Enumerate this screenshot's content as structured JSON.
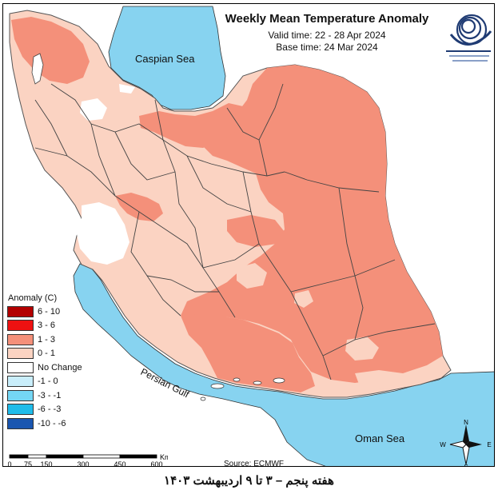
{
  "header": {
    "title": "Weekly Mean Temperature Anomaly",
    "valid_time": "Valid time: 22 - 28 Apr 2024",
    "base_time": "Base time: 24 Mar 2024"
  },
  "water_labels": {
    "caspian": "Caspian Sea",
    "gulf": "Persian Gulf",
    "oman": "Oman Sea"
  },
  "legend": {
    "title": "Anomaly (C)",
    "items": [
      {
        "label": "6 - 10",
        "color": "#b30000"
      },
      {
        "label": "3 - 6",
        "color": "#ee1111"
      },
      {
        "label": "1 - 3",
        "color": "#f4907a"
      },
      {
        "label": "0 - 1",
        "color": "#fbd3c2"
      },
      {
        "label": "No Change",
        "color": "#ffffff"
      },
      {
        "label": "-1 - 0",
        "color": "#c9eefb"
      },
      {
        "label": "-3 - -1",
        "color": "#74d6f4"
      },
      {
        "label": "-6 - -3",
        "color": "#1fbcea"
      },
      {
        "label": "-10 - -6",
        "color": "#1a56b0"
      }
    ]
  },
  "scale_bar": {
    "ticks": [
      "0",
      "75",
      "150",
      "300",
      "450",
      "600"
    ],
    "unit": "Km"
  },
  "compass": {
    "n": "N",
    "s": "S",
    "e": "E",
    "w": "W"
  },
  "source": "Source: ECMWF",
  "footer": "هفته پنجم – ۳ تا ۹ اردیبهشت ۱۴۰۳",
  "colors": {
    "sea": "#87d3f0",
    "warm_1_3": "#f4907a",
    "warm_0_1": "#fbd3c2",
    "no_change": "#ffffff"
  }
}
